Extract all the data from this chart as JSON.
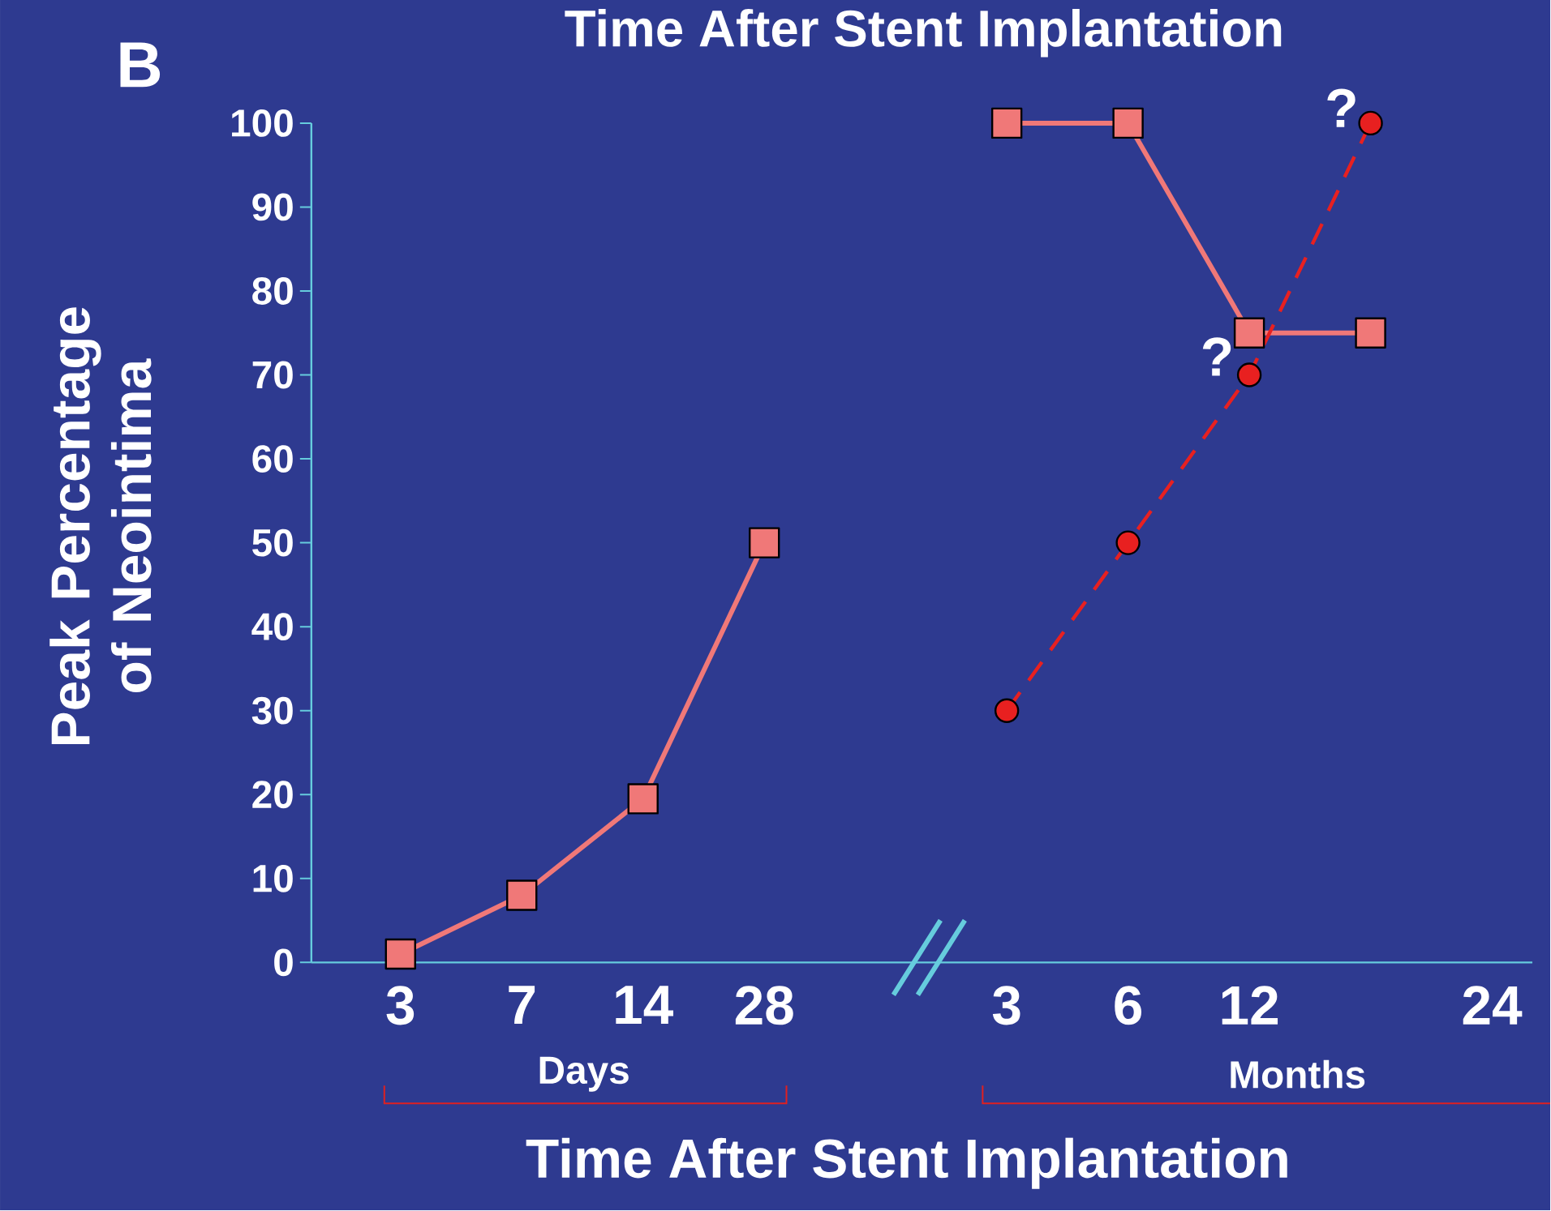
{
  "chart_data": {
    "type": "line",
    "title": "Time After Stent Implantation",
    "xlabel": "Time After Stent Implantation",
    "ylabel": "Peak Percentage of Neointima",
    "categories": [
      "3",
      "7",
      "14",
      "28",
      null,
      "3",
      "6",
      "12",
      null,
      "24"
    ],
    "series": [
      {
        "color": "#f07878",
        "marker": "square",
        "line_style": "solid",
        "values": [
          1,
          8,
          19.5,
          50,
          null,
          100,
          100,
          75,
          75,
          null
        ]
      },
      {
        "color": "#e82020",
        "marker": "circle",
        "line_style": "dashed",
        "values": [
          null,
          null,
          null,
          null,
          null,
          30,
          50,
          70,
          100,
          null
        ]
      }
    ],
    "ylim": [
      0,
      100
    ],
    "yticks": [
      0,
      10,
      20,
      30,
      40,
      50,
      60,
      70,
      80,
      90,
      100
    ],
    "grid": false,
    "annotations": [
      {
        "text": "?",
        "x": "12",
        "y": 70
      },
      "Days",
      "Months",
      "B",
      "?"
    ]
  }
}
